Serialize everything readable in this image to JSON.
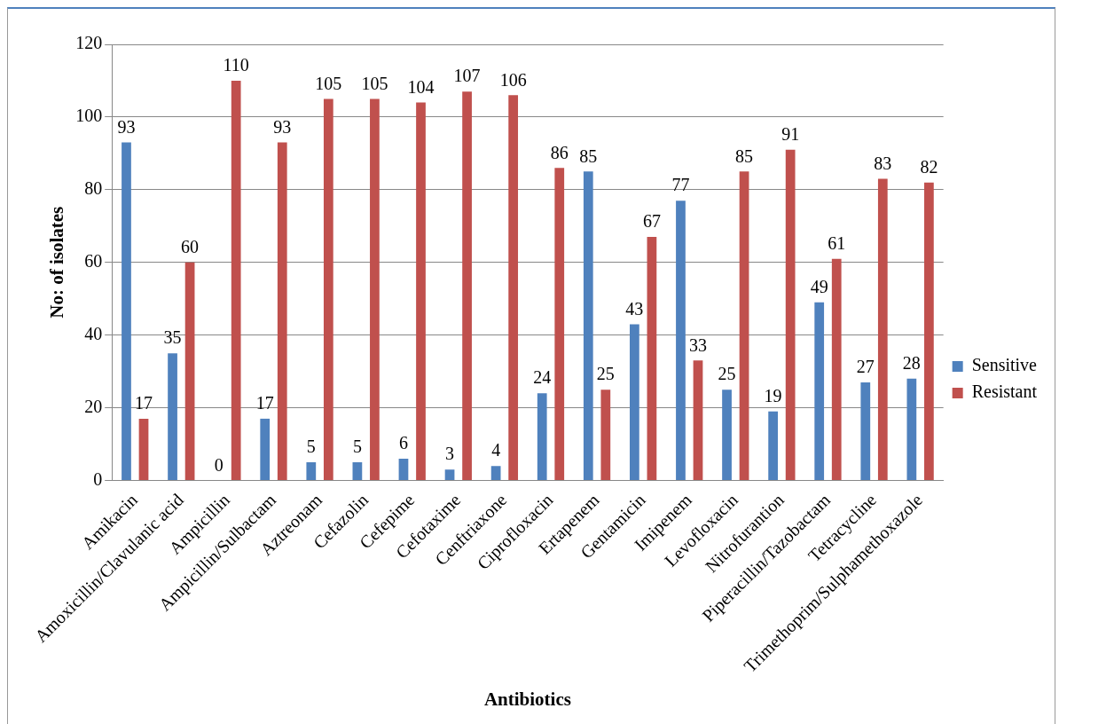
{
  "chart_data": {
    "type": "bar",
    "xlabel": "Antibiotics",
    "ylabel": "No: of isolates",
    "categories": [
      "Amikacin",
      "Amoxicillin/Clavulanic acid",
      "Ampicillin",
      "Ampicillin/Sulbactam",
      "Aztreonam",
      "Cefazolin",
      "Cefepime",
      "Cefotaxime",
      "Cenftriaxone",
      "Ciprofloxacin",
      "Ertapenem",
      "Gentamicin",
      "Imipenem",
      "Levofloxacin",
      "Nitrofurantion",
      "Piperacillin/Tazobactam",
      "Tetracycline",
      "Trimethoprim/Sulphamethoxazole"
    ],
    "series": [
      {
        "name": "Sensitive",
        "color": "#4f81bd",
        "values": [
          93,
          35,
          0,
          17,
          5,
          5,
          6,
          3,
          4,
          24,
          85,
          43,
          77,
          25,
          19,
          49,
          27,
          28
        ]
      },
      {
        "name": "Resistant",
        "color": "#c0504d",
        "values": [
          17,
          60,
          110,
          93,
          105,
          105,
          104,
          107,
          106,
          86,
          25,
          67,
          33,
          85,
          91,
          61,
          83,
          82
        ]
      }
    ],
    "ylim": [
      0,
      120
    ],
    "yticks": [
      0,
      20,
      40,
      60,
      80,
      100,
      120
    ],
    "grid": "y",
    "legend": "right",
    "data_labels": true
  }
}
